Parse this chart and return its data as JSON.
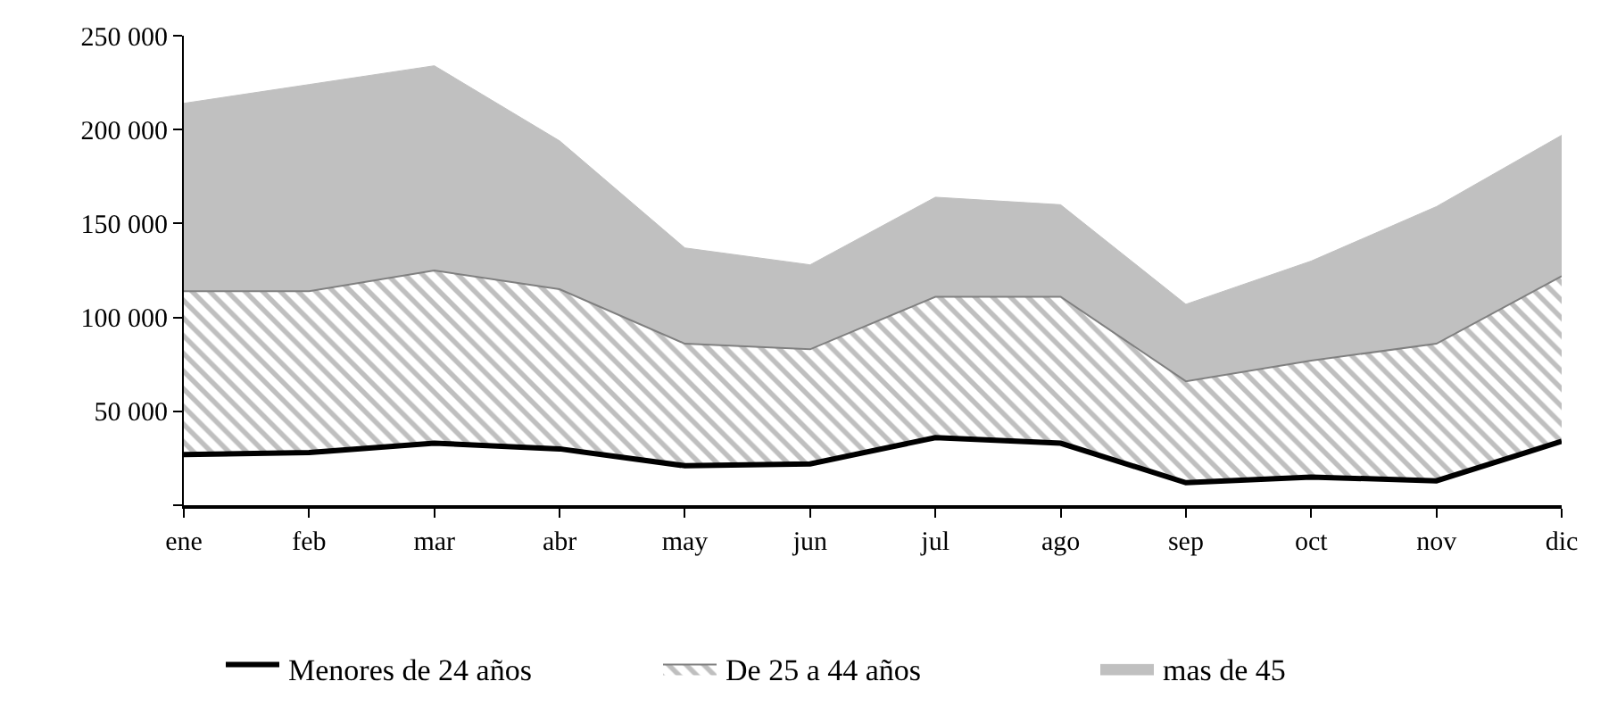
{
  "chart_data": {
    "type": "area",
    "stacked": true,
    "categories": [
      "ene",
      "feb",
      "mar",
      "abr",
      "may",
      "jun",
      "jul",
      "ago",
      "sep",
      "oct",
      "nov",
      "dic"
    ],
    "series": [
      {
        "name": "Menores de 24 años",
        "color": "#ffffff",
        "values": [
          27000,
          28000,
          33000,
          30000,
          21000,
          22000,
          36000,
          33000,
          12000,
          15000,
          13000,
          34000
        ]
      },
      {
        "name": "De 25 a 44 años",
        "color": "#808080",
        "values": [
          87000,
          86000,
          92000,
          85000,
          65000,
          61000,
          75000,
          78000,
          54000,
          62000,
          73000,
          88000
        ]
      },
      {
        "name": "mas de 45",
        "color": "#c0c0c0",
        "values": [
          100000,
          110000,
          109000,
          79000,
          51000,
          45000,
          53000,
          49000,
          41000,
          53000,
          73000,
          75000
        ]
      }
    ],
    "ylim": [
      0,
      250000
    ],
    "yticks": [
      {
        "value": 0,
        "label": null
      },
      {
        "value": 50000,
        "label": "50 000"
      },
      {
        "value": 100000,
        "label": "100 000"
      },
      {
        "value": 150000,
        "label": "150 000"
      },
      {
        "value": 200000,
        "label": "200 000"
      },
      {
        "value": 250000,
        "label": "250 000"
      }
    ],
    "legend": "bottom"
  }
}
